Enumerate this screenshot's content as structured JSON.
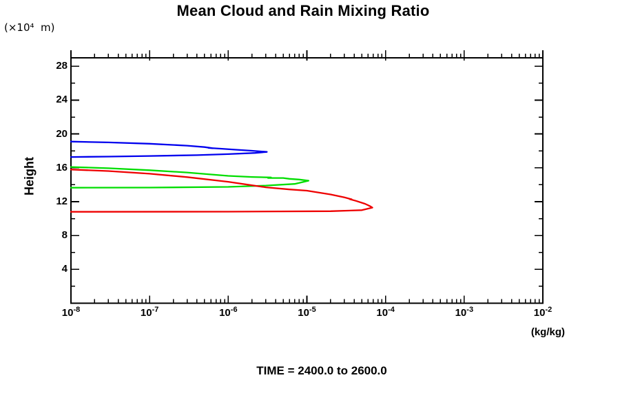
{
  "title": "Mean Cloud and Rain Mixing Ratio",
  "y_axis_units": "(×10⁴  m)",
  "ylabel": "Height",
  "xlabel_units": "(kg/kg)",
  "footer": "TIME = 2400.0 to 2600.0",
  "chart_data": {
    "type": "line",
    "title": "Mean Cloud and Rain Mixing Ratio",
    "xlabel": "(kg/kg)",
    "ylabel": "Height",
    "y_axis_units": "(×10⁴ m)",
    "annotation": "TIME = 2400.0 to 2600.0",
    "x_scale": "log10",
    "x_range_exponents": [
      -8,
      -2
    ],
    "x_tick_exponents": [
      -8,
      -7,
      -6,
      -5,
      -4,
      -3,
      -2
    ],
    "ylim": [
      0,
      29
    ],
    "y_major_ticks": [
      4,
      8,
      12,
      16,
      20,
      24,
      28
    ],
    "y_minor_step": 2,
    "grid": false,
    "legend": "none",
    "frame_color": "#000000",
    "series": [
      {
        "name": "blue-contour",
        "color": "#0000ee",
        "points": [
          [
            1e-08,
            19.1
          ],
          [
            3e-08,
            19.0
          ],
          [
            1e-07,
            18.85
          ],
          [
            3e-07,
            18.62
          ],
          [
            5e-07,
            18.45
          ],
          [
            6.3e-07,
            18.32
          ],
          [
            5.6e-07,
            18.35
          ],
          [
            8e-07,
            18.26
          ],
          [
            1.2e-06,
            18.15
          ],
          [
            2e-06,
            18.02
          ],
          [
            3.1e-06,
            17.88
          ],
          [
            2.2e-06,
            17.76
          ],
          [
            1e-06,
            17.62
          ],
          [
            4e-07,
            17.5
          ],
          [
            1e-07,
            17.4
          ],
          [
            3e-08,
            17.33
          ],
          [
            1e-08,
            17.28
          ]
        ]
      },
      {
        "name": "green-contour",
        "color": "#00dd00",
        "points": [
          [
            1e-08,
            16.1
          ],
          [
            3e-08,
            15.95
          ],
          [
            1e-07,
            15.72
          ],
          [
            3e-07,
            15.45
          ],
          [
            1e-06,
            15.05
          ],
          [
            2e-06,
            14.92
          ],
          [
            3.5e-06,
            14.86
          ],
          [
            3.2e-06,
            14.8
          ],
          [
            5e-06,
            14.8
          ],
          [
            6e-06,
            14.7
          ],
          [
            8e-06,
            14.62
          ],
          [
            1.05e-05,
            14.48
          ],
          [
            8.5e-06,
            14.28
          ],
          [
            7e-06,
            14.1
          ],
          [
            3e-06,
            13.9
          ],
          [
            1e-06,
            13.75
          ],
          [
            1e-07,
            13.67
          ],
          [
            1e-08,
            13.65
          ]
        ]
      },
      {
        "name": "red-contour",
        "color": "#ee0000",
        "points": [
          [
            1e-08,
            15.8
          ],
          [
            3e-08,
            15.62
          ],
          [
            1e-07,
            15.3
          ],
          [
            3e-07,
            14.9
          ],
          [
            1e-06,
            14.35
          ],
          [
            3e-06,
            13.7
          ],
          [
            6e-06,
            13.45
          ],
          [
            1e-05,
            13.3
          ],
          [
            2e-05,
            12.85
          ],
          [
            3e-05,
            12.5
          ],
          [
            3.7e-05,
            12.28
          ],
          [
            3.5e-05,
            12.3
          ],
          [
            4.2e-05,
            12.1
          ],
          [
            5.5e-05,
            11.75
          ],
          [
            6.4e-05,
            11.45
          ],
          [
            6.8e-05,
            11.3
          ],
          [
            5e-05,
            11.0
          ],
          [
            2e-05,
            10.88
          ],
          [
            1e-06,
            10.82
          ],
          [
            1e-08,
            10.8
          ]
        ]
      }
    ]
  }
}
